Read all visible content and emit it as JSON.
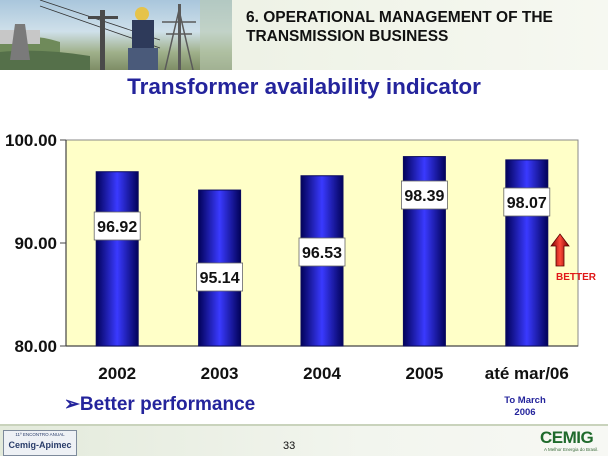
{
  "header": {
    "section_title": "6.  OPERATIONAL MANAGEMENT OF THE TRANSMISSION BUSINESS"
  },
  "slide": {
    "title": "Transformer availability indicator",
    "bullet": "➢Better performance",
    "period_note": "To March\n2006",
    "page_number": "33"
  },
  "footer": {
    "event_line": "11º ENCONTRO ANUAL",
    "event_name": "Cemig-Apimec",
    "logo_text": "CEMIG",
    "logo_tagline": "A Melhor Energia do Brasil."
  },
  "chart_data": {
    "type": "bar",
    "title": "",
    "xlabel": "",
    "ylabel": "",
    "categories": [
      "2002",
      "2003",
      "2004",
      "2005",
      "até mar/06"
    ],
    "values": [
      96.92,
      95.14,
      96.53,
      98.39,
      98.07
    ],
    "data_labels": [
      "96.92",
      "95.14",
      "96.53",
      "98.39",
      "98.07"
    ],
    "ylim": [
      80,
      100
    ],
    "yticks": [
      80,
      90,
      100
    ],
    "ytick_labels": [
      "80.00",
      "90.00",
      "100.00"
    ],
    "grid": false,
    "legend": "none",
    "annotation": "BETTER",
    "colors": {
      "plot_background": "#ffffc8",
      "bar_edge": "#0a0a5e",
      "bar_center": "#3a3aff",
      "bar_dark": "#02025a",
      "annotation_text": "#e01818",
      "arrow": "#c01010"
    }
  }
}
